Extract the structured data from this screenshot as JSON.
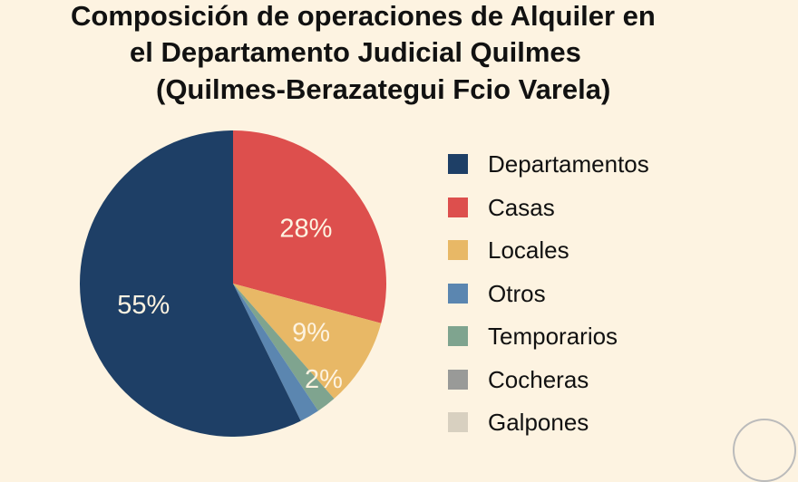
{
  "chart_data": {
    "type": "pie",
    "title": [
      "Composición de operaciones de Alquiler en",
      "el Departamento Judicial Quilmes",
      "(Quilmes-Berazategui Fcio Varela)"
    ],
    "slices": [
      {
        "name": "Casas",
        "value": 28,
        "label": "28%",
        "color": "#dd4f4d"
      },
      {
        "name": "Locales",
        "value": 9,
        "label": "9%",
        "color": "#e8b866"
      },
      {
        "name": "Temporarios",
        "value": 2,
        "label": "2%",
        "color": "#7fa48f"
      },
      {
        "name": "Otros",
        "value": 2,
        "label": "2%",
        "color": "#5b86b0"
      },
      {
        "name": "Departamentos",
        "value": 55,
        "label": "55%",
        "color": "#1e3f66"
      }
    ],
    "legend": {
      "placement": "right",
      "items": [
        {
          "label": "Departamentos",
          "color": "#1e3f66"
        },
        {
          "label": "Casas",
          "color": "#dd4f4d"
        },
        {
          "label": "Locales",
          "color": "#e8b866"
        },
        {
          "label": "Otros",
          "color": "#5b86b0"
        },
        {
          "label": "Temporarios",
          "color": "#7fa48f"
        },
        {
          "label": "Cocheras",
          "color": "#999a98"
        },
        {
          "label": "Galpones",
          "color": "#d8d0c0"
        }
      ]
    }
  }
}
